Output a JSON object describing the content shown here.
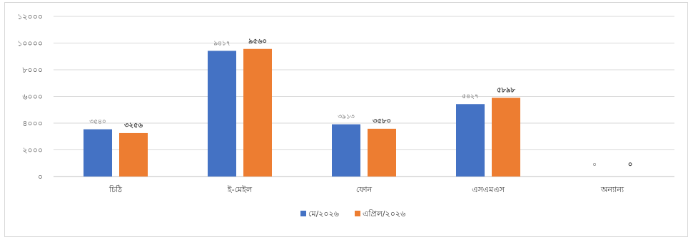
{
  "chart_data": {
    "type": "bar",
    "categories": [
      "চিঠি",
      "ই-মেইল",
      "ফোন",
      "এসএমএস",
      "অন্যান্য"
    ],
    "series": [
      {
        "name": "মে/২০২৬",
        "values": [
          3540,
          9417,
          3913,
          5427,
          0
        ],
        "labels": [
          "৩৫৪০",
          "৯৪১৭",
          "৩৯১৩",
          "৫৪২৭",
          "০"
        ],
        "color": "#4472C4"
      },
      {
        "name": "এপ্রিল/২০২৬",
        "values": [
          3256,
          9560,
          3580,
          5898,
          0
        ],
        "labels": [
          "৩২৫৬",
          "৯৫৬০",
          "৩৫৮০",
          "৫৮৯৮",
          "০"
        ],
        "color": "#ED7D31"
      }
    ],
    "y_ticks": [
      0,
      2000,
      4000,
      6000,
      8000,
      10000,
      12000
    ],
    "y_tick_labels": [
      "০",
      "২০০০",
      "৪০০০",
      "৬০০০",
      "৮০০০",
      "১০০০০",
      "১২০০০"
    ],
    "ylim": [
      0,
      12000
    ],
    "grid": true,
    "legend_position": "bottom"
  }
}
